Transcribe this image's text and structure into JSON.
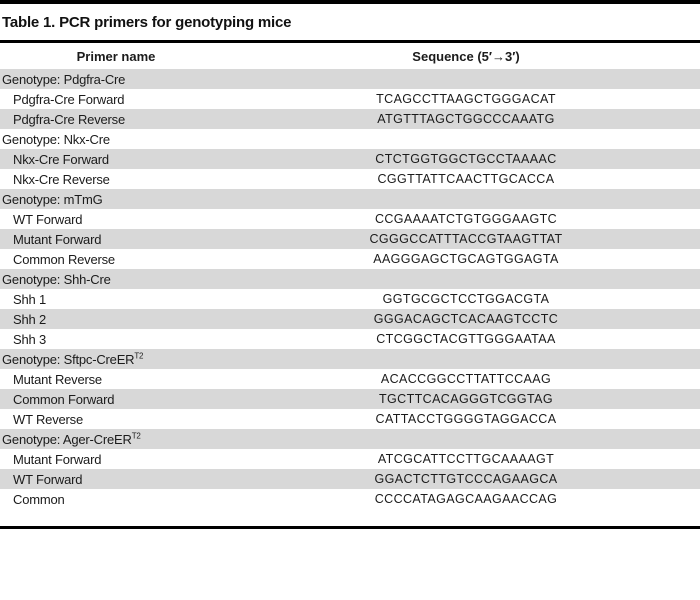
{
  "table": {
    "title": "Table 1. PCR primers for genotyping mice",
    "columns": {
      "primer": "Primer name",
      "sequence": "Sequence (5′→3′)"
    },
    "colors": {
      "stripe": "#d8d8d8",
      "rule": "#000000",
      "text": "#1b1b1b",
      "background": "#ffffff"
    },
    "rows": [
      {
        "kind": "section",
        "name": "Genotype: Pdgfra-Cre",
        "sup": "",
        "sequence": ""
      },
      {
        "kind": "primer",
        "name": "Pdgfra-Cre Forward",
        "sup": "",
        "sequence": "TCAGCCTTAAGCTGGGACAT"
      },
      {
        "kind": "primer",
        "name": "Pdgfra-Cre Reverse",
        "sup": "",
        "sequence": "ATGTTTAGCTGGCCCAAATG"
      },
      {
        "kind": "section",
        "name": "Genotype: Nkx-Cre",
        "sup": "",
        "sequence": ""
      },
      {
        "kind": "primer",
        "name": "Nkx-Cre Forward",
        "sup": "",
        "sequence": "CTCTGGTGGCTGCCTAAAAC"
      },
      {
        "kind": "primer",
        "name": "Nkx-Cre Reverse",
        "sup": "",
        "sequence": "CGGTTATTCAACTTGCACCA"
      },
      {
        "kind": "section",
        "name": "Genotype: mTmG",
        "sup": "",
        "sequence": ""
      },
      {
        "kind": "primer",
        "name": "WT Forward",
        "sup": "",
        "sequence": "CCGAAAATCTGTGGGAAGTC"
      },
      {
        "kind": "primer",
        "name": "Mutant Forward",
        "sup": "",
        "sequence": "CGGGCCATTTACCGTAAGTTAT"
      },
      {
        "kind": "primer",
        "name": "Common Reverse",
        "sup": "",
        "sequence": "AAGGGAGCTGCAGTGGAGTA"
      },
      {
        "kind": "section",
        "name": "Genotype: Shh-Cre",
        "sup": "",
        "sequence": ""
      },
      {
        "kind": "primer",
        "name": "Shh 1",
        "sup": "",
        "sequence": "GGTGCGCTCCTGGACGTA"
      },
      {
        "kind": "primer",
        "name": "Shh 2",
        "sup": "",
        "sequence": "GGGACAGCTCACAAGTCCTC"
      },
      {
        "kind": "primer",
        "name": "Shh 3",
        "sup": "",
        "sequence": "CTCGGCTACGTTGGGAATAA"
      },
      {
        "kind": "section",
        "name": "Genotype: Sftpc-CreER",
        "sup": "T2",
        "sequence": ""
      },
      {
        "kind": "primer",
        "name": "Mutant Reverse",
        "sup": "",
        "sequence": "ACACCGGCCTTATTCCAAG"
      },
      {
        "kind": "primer",
        "name": "Common Forward",
        "sup": "",
        "sequence": "TGCTTCACAGGGTCGGTAG"
      },
      {
        "kind": "primer",
        "name": "WT Reverse",
        "sup": "",
        "sequence": "CATTACCTGGGGTAGGACCA"
      },
      {
        "kind": "section",
        "name": "Genotype: Ager-CreER",
        "sup": "T2",
        "sequence": ""
      },
      {
        "kind": "primer",
        "name": "Mutant Forward",
        "sup": "",
        "sequence": "ATCGCATTCCTTGCAAAAGT"
      },
      {
        "kind": "primer",
        "name": "WT Forward",
        "sup": "",
        "sequence": "GGACTCTTGTCCCAGAAGCA"
      },
      {
        "kind": "primer",
        "name": "Common",
        "sup": "",
        "sequence": "CCCCATAGAGCAAGAACCAG"
      }
    ]
  }
}
